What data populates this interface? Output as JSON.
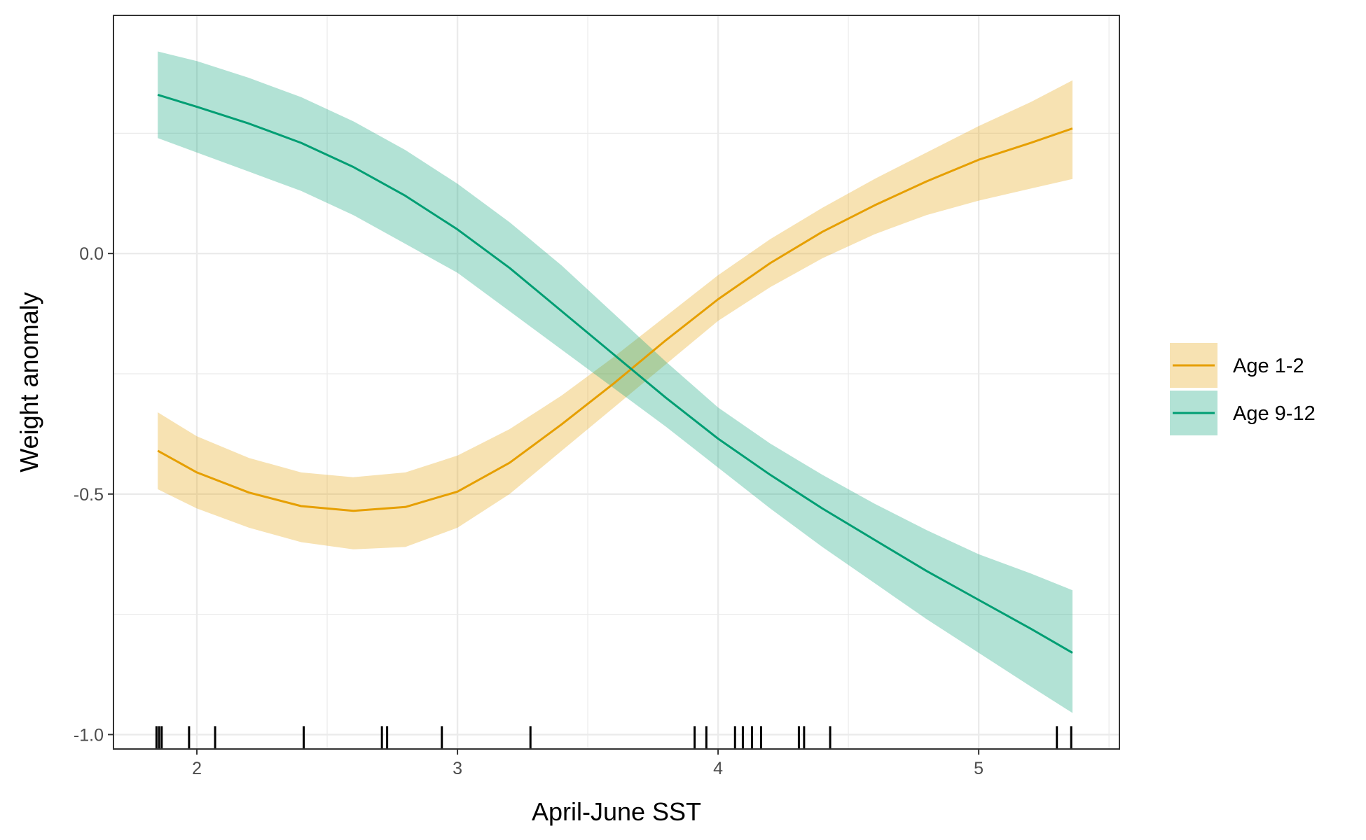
{
  "chart_data": {
    "type": "line",
    "xlabel": "April-June SST",
    "ylabel": "Weight anomaly",
    "xlim": [
      1.68,
      5.54
    ],
    "ylim": [
      -1.03,
      0.495
    ],
    "x_ticks": [
      2,
      3,
      4,
      5
    ],
    "x_tick_labels": [
      "2",
      "3",
      "4",
      "5"
    ],
    "y_ticks": [
      -1.0,
      -0.5,
      0.0
    ],
    "y_tick_labels": [
      "-1.0",
      "-0.5",
      "0.0"
    ],
    "grid": true,
    "legend_position": "right",
    "series": [
      {
        "name": "Age 1-2",
        "color": "#E69F00",
        "fill_color": "#F7DEAA",
        "x": [
          1.85,
          2.0,
          2.2,
          2.4,
          2.6,
          2.8,
          3.0,
          3.2,
          3.4,
          3.6,
          3.8,
          4.0,
          4.2,
          4.4,
          4.6,
          4.8,
          5.0,
          5.2,
          5.36
        ],
        "y": [
          -0.41,
          -0.455,
          -0.497,
          -0.525,
          -0.535,
          -0.527,
          -0.495,
          -0.435,
          -0.355,
          -0.27,
          -0.18,
          -0.095,
          -0.02,
          0.045,
          0.1,
          0.15,
          0.195,
          0.23,
          0.26
        ],
        "lower": [
          -0.49,
          -0.53,
          -0.57,
          -0.6,
          -0.615,
          -0.61,
          -0.57,
          -0.5,
          -0.41,
          -0.32,
          -0.23,
          -0.14,
          -0.07,
          -0.01,
          0.04,
          0.08,
          0.11,
          0.135,
          0.155
        ],
        "upper": [
          -0.33,
          -0.38,
          -0.425,
          -0.455,
          -0.465,
          -0.455,
          -0.42,
          -0.365,
          -0.295,
          -0.215,
          -0.13,
          -0.045,
          0.03,
          0.095,
          0.155,
          0.21,
          0.265,
          0.315,
          0.36
        ]
      },
      {
        "name": "Age 9-12",
        "color": "#009E73",
        "fill_color": "#B2E1D5",
        "x": [
          1.85,
          2.0,
          2.2,
          2.4,
          2.6,
          2.8,
          3.0,
          3.2,
          3.4,
          3.6,
          3.8,
          4.0,
          4.2,
          4.4,
          4.6,
          4.8,
          5.0,
          5.2,
          5.36
        ],
        "y": [
          0.33,
          0.305,
          0.27,
          0.23,
          0.18,
          0.12,
          0.05,
          -0.03,
          -0.12,
          -0.21,
          -0.3,
          -0.385,
          -0.46,
          -0.53,
          -0.595,
          -0.66,
          -0.72,
          -0.78,
          -0.83
        ],
        "lower": [
          0.24,
          0.21,
          0.17,
          0.13,
          0.08,
          0.02,
          -0.04,
          -0.12,
          -0.2,
          -0.28,
          -0.36,
          -0.445,
          -0.53,
          -0.61,
          -0.685,
          -0.76,
          -0.83,
          -0.9,
          -0.955
        ],
        "upper": [
          0.42,
          0.4,
          0.365,
          0.325,
          0.275,
          0.215,
          0.145,
          0.065,
          -0.025,
          -0.125,
          -0.225,
          -0.32,
          -0.395,
          -0.46,
          -0.52,
          -0.575,
          -0.625,
          -0.665,
          -0.7
        ]
      }
    ],
    "rug_x": [
      1.845,
      1.855,
      1.865,
      1.97,
      2.07,
      2.41,
      2.71,
      2.73,
      2.94,
      3.28,
      3.91,
      3.955,
      4.065,
      4.095,
      4.13,
      4.165,
      4.31,
      4.33,
      4.43,
      5.3,
      5.355
    ]
  }
}
